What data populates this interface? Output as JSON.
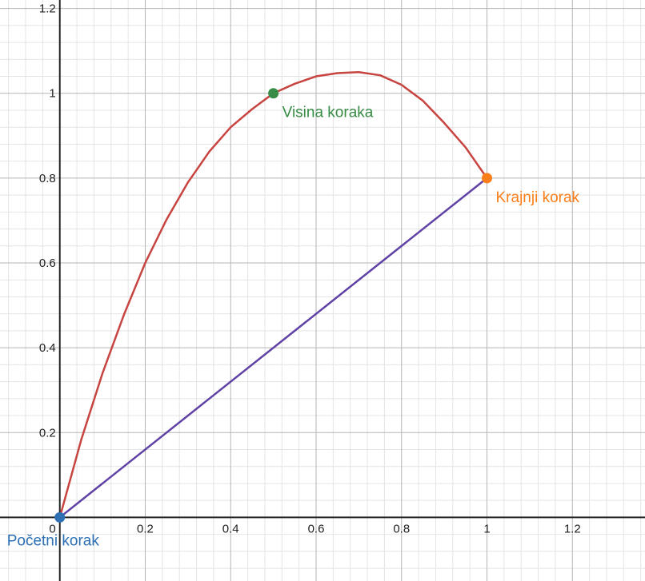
{
  "chart_data": {
    "type": "line",
    "title": "",
    "xlabel": "",
    "ylabel": "",
    "xlim": [
      -0.14,
      1.37
    ],
    "ylim": [
      -0.15,
      1.22
    ],
    "grid": true,
    "minor_grid_step": 0.04,
    "major_grid_step": 0.2,
    "x_ticks": [
      0.2,
      0.4,
      0.6,
      0.8,
      1.0,
      1.2
    ],
    "x_tick_labels": [
      "0.2",
      "0.4",
      "0.6",
      "0.8",
      "1",
      "1.2"
    ],
    "y_ticks": [
      0.2,
      0.4,
      0.6,
      0.8,
      1.0,
      1.2
    ],
    "y_tick_labels": [
      "0.2",
      "0.4",
      "0.6",
      "0.8",
      "1",
      "1.2"
    ],
    "origin_label": "0",
    "series": [
      {
        "name": "step-arc",
        "color": "#c74440",
        "x": [
          0,
          0.05,
          0.1,
          0.15,
          0.2,
          0.25,
          0.3,
          0.35,
          0.4,
          0.45,
          0.5,
          0.55,
          0.6,
          0.65,
          0.7,
          0.75,
          0.8,
          0.85,
          0.9,
          0.95,
          1.0
        ],
        "values": [
          0,
          0.1825,
          0.34,
          0.4775,
          0.6,
          0.7025,
          0.79,
          0.8625,
          0.92,
          0.9625,
          1.0,
          1.0225,
          1.04,
          1.0475,
          1.05,
          1.0425,
          1.02,
          0.9825,
          0.93,
          0.8725,
          0.8
        ]
      },
      {
        "name": "step-line",
        "color": "#6042a6",
        "x": [
          0,
          1
        ],
        "values": [
          0,
          0.8
        ]
      }
    ],
    "points": [
      {
        "name": "pocetni",
        "label": "Početni korak",
        "x": 0,
        "y": 0,
        "color": "#2d70b3",
        "label_position": "below-left"
      },
      {
        "name": "visina",
        "label": "Visina koraka",
        "x": 0.5,
        "y": 1.0,
        "color": "#388c46",
        "label_position": "below-right"
      },
      {
        "name": "krajnji",
        "label": "Krajnji korak",
        "x": 1.0,
        "y": 0.8,
        "color": "#fa7e19",
        "label_position": "below-right"
      }
    ]
  }
}
